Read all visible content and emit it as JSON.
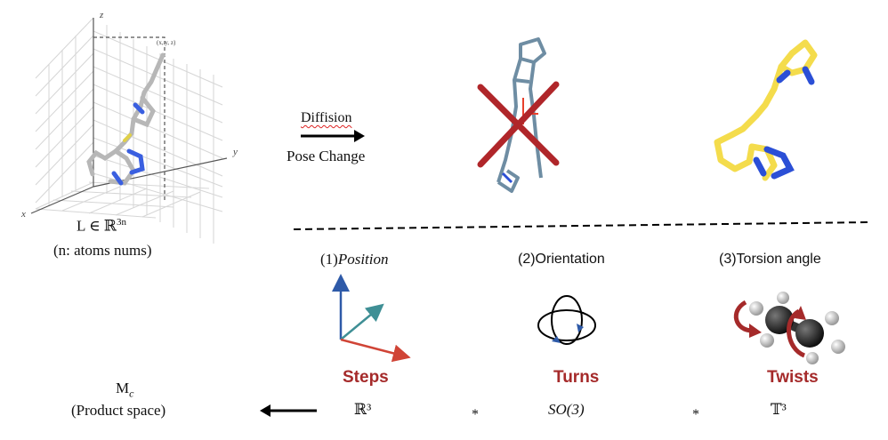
{
  "ligand": {
    "axis_z": "z",
    "axis_y": "y",
    "axis_x": "x",
    "point_label": "(x, y, z)",
    "space_label": "L ∈ ℝ",
    "space_sup": "3n",
    "note": "(n: atoms nums)"
  },
  "transform": {
    "top_label": "Diffision",
    "bottom_label": "Pose Change"
  },
  "components": [
    {
      "title": "(1)",
      "title_math": "Position",
      "name": "Steps",
      "group": "ℝ³"
    },
    {
      "title": "(2)Orientation",
      "title_math": "",
      "name": "Turns",
      "group": "SO(3)"
    },
    {
      "title": "(3)Torsion angle",
      "title_math": "",
      "name": "Twists",
      "group": "𝕋³"
    }
  ],
  "product": {
    "symbol": "M",
    "subscript": "c",
    "label": "(Product space)",
    "operator": "*"
  },
  "colors": {
    "red": "#a52a2a",
    "cross": "#b0262a",
    "ligand_yellow": "#f4dc4c",
    "ligand_blue": "#2b4fd6",
    "protein_gray": "#6e8da3",
    "axis_blue": "#2e5aa8",
    "axis_teal": "#3f8f95",
    "axis_red": "#d04436"
  },
  "icons": [
    "arrow-right-icon",
    "arrow-left-icon",
    "rotation-icon",
    "axes-icon",
    "ethane-molecule-icon",
    "molecule-3d-icon"
  ]
}
